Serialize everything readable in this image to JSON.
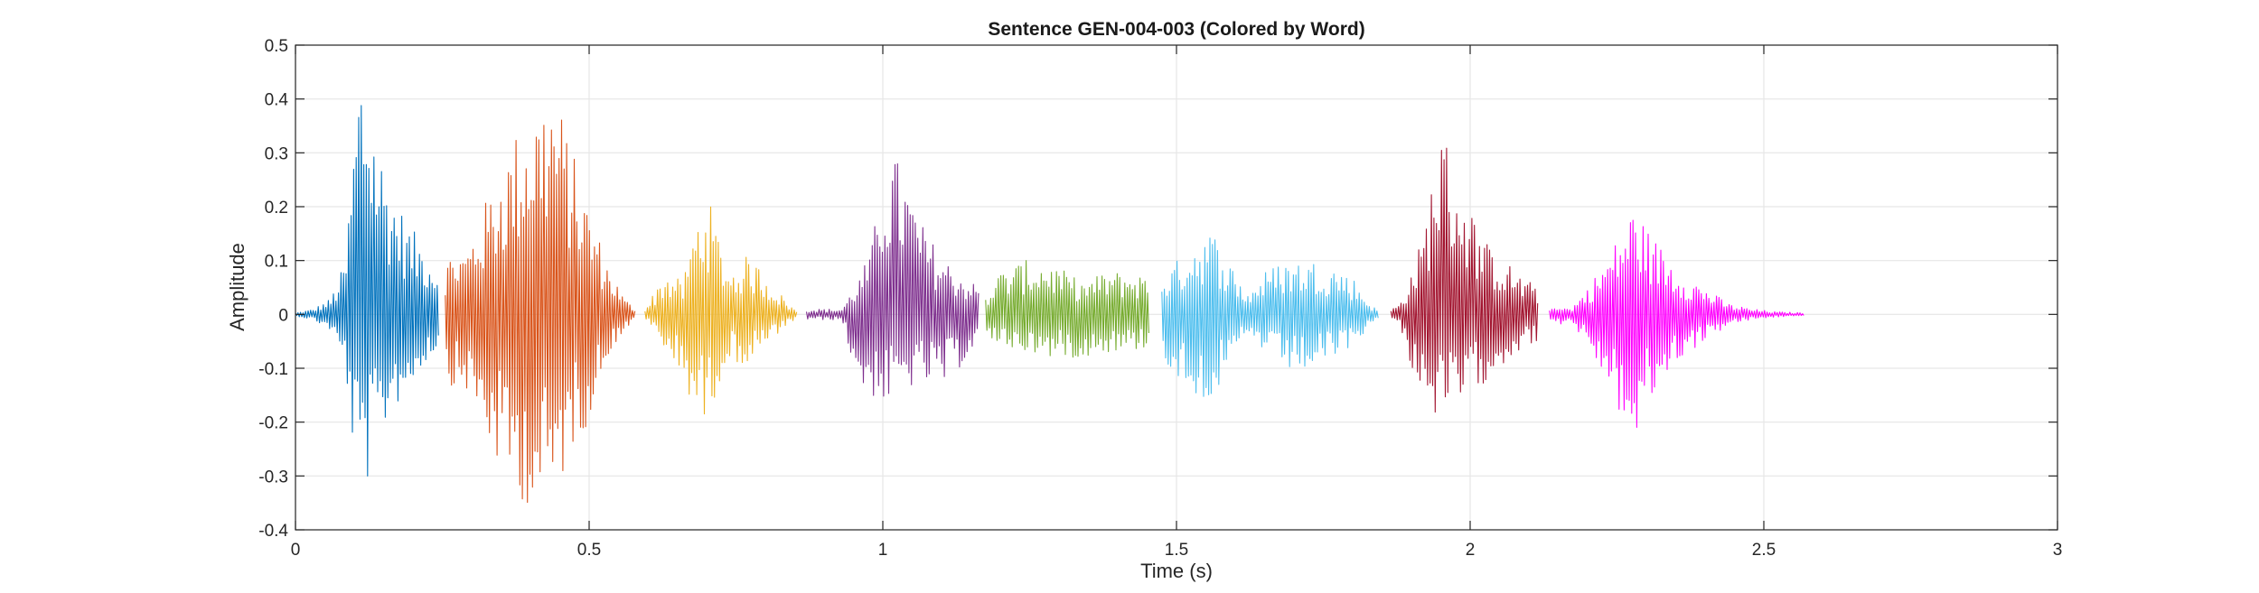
{
  "chart_data": {
    "type": "line",
    "title": "Sentence GEN-004-003 (Colored by Word)",
    "xlabel": "Time (s)",
    "ylabel": "Amplitude",
    "xlim": [
      0,
      3
    ],
    "ylim": [
      -0.4,
      0.5
    ],
    "xticks": [
      0,
      0.5,
      1,
      1.5,
      2,
      2.5,
      3
    ],
    "xtick_labels": [
      "0",
      "0.5",
      "1",
      "1.5",
      "2",
      "2.5",
      "3"
    ],
    "yticks": [
      -0.4,
      -0.3,
      -0.2,
      -0.1,
      0,
      0.1,
      0.2,
      0.3,
      0.4,
      0.5
    ],
    "ytick_labels": [
      "-0.4",
      "-0.3",
      "-0.2",
      "-0.1",
      "0",
      "0.1",
      "0.2",
      "0.3",
      "0.4",
      "0.5"
    ],
    "grid": true,
    "legend": "none",
    "series": [
      {
        "color": "#0072BD",
        "x": [
          0.0,
          0.03,
          0.06,
          0.085,
          0.1,
          0.11,
          0.125,
          0.14,
          0.16,
          0.19,
          0.22,
          0.245
        ],
        "pos": [
          0.003,
          0.01,
          0.03,
          0.1,
          0.35,
          0.49,
          0.43,
          0.33,
          0.25,
          0.17,
          0.13,
          0.08
        ],
        "neg": [
          -0.003,
          -0.01,
          -0.03,
          -0.1,
          -0.28,
          -0.32,
          -0.31,
          -0.27,
          -0.18,
          -0.15,
          -0.09,
          -0.06
        ]
      },
      {
        "color": "#D95319",
        "x": [
          0.255,
          0.27,
          0.29,
          0.32,
          0.35,
          0.38,
          0.41,
          0.44,
          0.47,
          0.5,
          0.53,
          0.56,
          0.58
        ],
        "pos": [
          0.1,
          0.12,
          0.12,
          0.2,
          0.28,
          0.35,
          0.4,
          0.43,
          0.31,
          0.2,
          0.1,
          0.03,
          0.01
        ],
        "neg": [
          -0.11,
          -0.14,
          -0.14,
          -0.22,
          -0.3,
          -0.34,
          -0.37,
          -0.36,
          -0.25,
          -0.2,
          -0.08,
          -0.03,
          -0.01
        ]
      },
      {
        "color": "#EDB120",
        "x": [
          0.595,
          0.61,
          0.63,
          0.66,
          0.68,
          0.7,
          0.72,
          0.74,
          0.77,
          0.79,
          0.81,
          0.84,
          0.855
        ],
        "pos": [
          0.01,
          0.04,
          0.08,
          0.06,
          0.17,
          0.23,
          0.15,
          0.08,
          0.11,
          0.09,
          0.06,
          0.02,
          0.005
        ],
        "neg": [
          -0.01,
          -0.03,
          -0.07,
          -0.12,
          -0.18,
          -0.21,
          -0.13,
          -0.08,
          -0.1,
          -0.07,
          -0.05,
          -0.02,
          -0.005
        ]
      },
      {
        "color": "#7E2F8E",
        "x": [
          0.87,
          0.9,
          0.93,
          0.96,
          0.98,
          1.0,
          1.02,
          1.04,
          1.07,
          1.1,
          1.13,
          1.165
        ],
        "pos": [
          0.01,
          0.01,
          0.01,
          0.07,
          0.12,
          0.27,
          0.3,
          0.25,
          0.16,
          0.11,
          0.08,
          0.05
        ],
        "neg": [
          -0.01,
          -0.01,
          -0.01,
          -0.14,
          -0.15,
          -0.17,
          -0.16,
          -0.14,
          -0.13,
          -0.14,
          -0.1,
          -0.05
        ]
      },
      {
        "color": "#77AC30",
        "x": [
          1.175,
          1.2,
          1.24,
          1.28,
          1.31,
          1.34,
          1.38,
          1.42,
          1.455
        ],
        "pos": [
          0.04,
          0.08,
          0.1,
          0.1,
          0.08,
          0.06,
          0.08,
          0.08,
          0.07
        ],
        "neg": [
          -0.04,
          -0.06,
          -0.07,
          -0.08,
          -0.08,
          -0.08,
          -0.07,
          -0.07,
          -0.06
        ]
      },
      {
        "color": "#4DBEEE",
        "x": [
          1.475,
          1.5,
          1.53,
          1.56,
          1.59,
          1.62,
          1.65,
          1.68,
          1.71,
          1.74,
          1.77,
          1.8,
          1.83,
          1.845
        ],
        "pos": [
          0.07,
          0.1,
          0.14,
          0.16,
          0.1,
          0.04,
          0.08,
          0.1,
          0.1,
          0.1,
          0.09,
          0.07,
          0.02,
          0.005
        ],
        "neg": [
          -0.08,
          -0.12,
          -0.15,
          -0.16,
          -0.11,
          -0.04,
          -0.07,
          -0.1,
          -0.11,
          -0.1,
          -0.08,
          -0.06,
          -0.02,
          -0.005
        ]
      },
      {
        "color": "#A2142F",
        "x": [
          1.865,
          1.88,
          1.9,
          1.92,
          1.94,
          1.95,
          1.97,
          2.0,
          2.03,
          2.06,
          2.09,
          2.115
        ],
        "pos": [
          0.01,
          0.02,
          0.08,
          0.15,
          0.3,
          0.36,
          0.29,
          0.2,
          0.13,
          0.1,
          0.07,
          0.05
        ],
        "neg": [
          -0.01,
          -0.02,
          -0.1,
          -0.15,
          -0.19,
          -0.2,
          -0.19,
          -0.15,
          -0.12,
          -0.09,
          -0.06,
          -0.05
        ]
      },
      {
        "color": "#FF00FF",
        "x": [
          2.135,
          2.15,
          2.17,
          2.2,
          2.23,
          2.26,
          2.28,
          2.3,
          2.33,
          2.36,
          2.4,
          2.44,
          2.48,
          2.52,
          2.57
        ],
        "pos": [
          0.01,
          0.02,
          0.01,
          0.05,
          0.1,
          0.16,
          0.21,
          0.16,
          0.12,
          0.08,
          0.05,
          0.02,
          0.01,
          0.005,
          0.003
        ],
        "neg": [
          -0.01,
          -0.02,
          -0.01,
          -0.06,
          -0.12,
          -0.2,
          -0.26,
          -0.18,
          -0.12,
          -0.08,
          -0.05,
          -0.02,
          -0.01,
          -0.005,
          -0.003
        ]
      }
    ]
  }
}
